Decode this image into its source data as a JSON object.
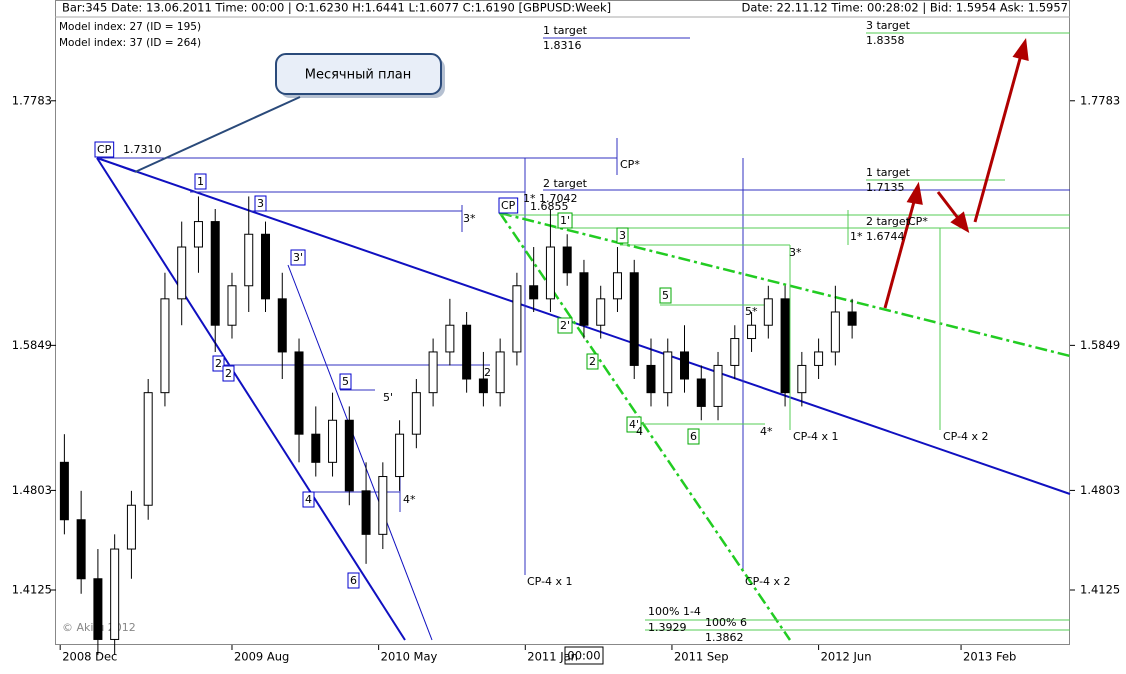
{
  "header": {
    "bar_info": "Bar:345  Date:  13.06.2011  Time:  00:00  |  O:1.6230  H:1.6441  L:1.6077  C:1.6190   [GBPUSD:Week]",
    "live_info": "Date: 22.11.12  Time:  00:28:02  |  Bid:  1.5954  Ask:  1.5957",
    "model_1": "Model index: 27  (ID = 195)",
    "model_2": "Model index: 37  (ID = 264)",
    "copyright": "© Akifu 2012",
    "callout": "Месячный план",
    "cursor_time": "00:00"
  },
  "chart_data": {
    "type": "candlestick",
    "log_scale": true,
    "x": [
      2,
      6,
      10,
      14,
      18,
      22,
      26,
      30,
      34,
      38,
      42,
      46,
      50,
      54,
      58,
      62,
      66,
      70,
      74,
      78,
      82,
      86,
      90,
      94,
      98,
      102,
      106,
      110,
      114,
      118,
      122,
      126,
      130,
      134,
      138,
      142,
      146,
      150,
      154,
      158,
      162,
      166,
      170,
      174,
      178,
      182,
      186,
      190
    ],
    "open": [
      1.5,
      1.46,
      1.42,
      1.38,
      1.44,
      1.47,
      1.55,
      1.62,
      1.66,
      1.68,
      1.6,
      1.63,
      1.67,
      1.62,
      1.58,
      1.52,
      1.5,
      1.53,
      1.48,
      1.45,
      1.49,
      1.52,
      1.55,
      1.58,
      1.6,
      1.56,
      1.55,
      1.58,
      1.63,
      1.62,
      1.66,
      1.64,
      1.6,
      1.62,
      1.64,
      1.57,
      1.55,
      1.58,
      1.56,
      1.54,
      1.57,
      1.59,
      1.6,
      1.62,
      1.55,
      1.57,
      1.58,
      1.61
    ],
    "high": [
      1.52,
      1.48,
      1.44,
      1.45,
      1.48,
      1.56,
      1.64,
      1.68,
      1.7,
      1.69,
      1.64,
      1.7,
      1.68,
      1.64,
      1.59,
      1.54,
      1.55,
      1.54,
      1.5,
      1.5,
      1.53,
      1.56,
      1.59,
      1.62,
      1.61,
      1.58,
      1.59,
      1.64,
      1.66,
      1.69,
      1.67,
      1.65,
      1.63,
      1.66,
      1.65,
      1.59,
      1.59,
      1.6,
      1.57,
      1.58,
      1.6,
      1.61,
      1.63,
      1.63,
      1.58,
      1.59,
      1.63,
      1.62
    ],
    "low": [
      1.45,
      1.41,
      1.37,
      1.37,
      1.42,
      1.46,
      1.54,
      1.6,
      1.64,
      1.58,
      1.59,
      1.61,
      1.61,
      1.56,
      1.5,
      1.49,
      1.49,
      1.47,
      1.43,
      1.44,
      1.48,
      1.51,
      1.54,
      1.57,
      1.55,
      1.54,
      1.54,
      1.57,
      1.61,
      1.61,
      1.63,
      1.59,
      1.59,
      1.61,
      1.56,
      1.54,
      1.54,
      1.55,
      1.53,
      1.53,
      1.56,
      1.58,
      1.59,
      1.54,
      1.54,
      1.56,
      1.57,
      1.59
    ],
    "close": [
      1.46,
      1.42,
      1.38,
      1.44,
      1.47,
      1.55,
      1.62,
      1.66,
      1.68,
      1.6,
      1.63,
      1.67,
      1.62,
      1.58,
      1.52,
      1.5,
      1.53,
      1.48,
      1.45,
      1.49,
      1.52,
      1.55,
      1.58,
      1.6,
      1.56,
      1.55,
      1.58,
      1.63,
      1.62,
      1.66,
      1.64,
      1.6,
      1.62,
      1.64,
      1.57,
      1.55,
      1.58,
      1.56,
      1.54,
      1.57,
      1.59,
      1.6,
      1.62,
      1.55,
      1.57,
      1.58,
      1.61,
      1.6
    ],
    "xlim": [
      0,
      242
    ],
    "xticks": [
      {
        "value": 1,
        "label": "2008 Dec"
      },
      {
        "value": 42,
        "label": "2009 Aug"
      },
      {
        "value": 77,
        "label": "2010 May"
      },
      {
        "value": 112,
        "label": "2011 Jan"
      },
      {
        "value": 147,
        "label": "2011 Sep"
      },
      {
        "value": 182,
        "label": "2012 Jun"
      },
      {
        "value": 216,
        "label": "2013 Feb"
      }
    ],
    "ylim": [
      1.3764,
      1.8647
    ],
    "yticks": [
      1.7783,
      1.5849,
      1.4803,
      1.4125
    ],
    "annotations": [
      "CP",
      "1.7310",
      "1",
      "3",
      "3'",
      "2",
      "2",
      "5",
      "5'",
      "4",
      "6",
      "4*",
      "3*",
      "CP*",
      "1 target",
      "1.8316",
      "2 target",
      "1*  1.7042",
      "CP",
      "1.6855",
      "1'",
      "3",
      "2'",
      "2",
      "5",
      "5*",
      "4'",
      "4",
      "6",
      "4*",
      "CP-4 x 1",
      "CP-4 x 2",
      "CP-4 x 1",
      "CP-4 x 2",
      "3*",
      "3 target",
      "1.8358",
      "1 target",
      "1.7135",
      "2 target",
      "1*  1.6744",
      "CP*",
      "2",
      "100% 1-4",
      "1.3929",
      "100% 6",
      "1.3862"
    ]
  }
}
